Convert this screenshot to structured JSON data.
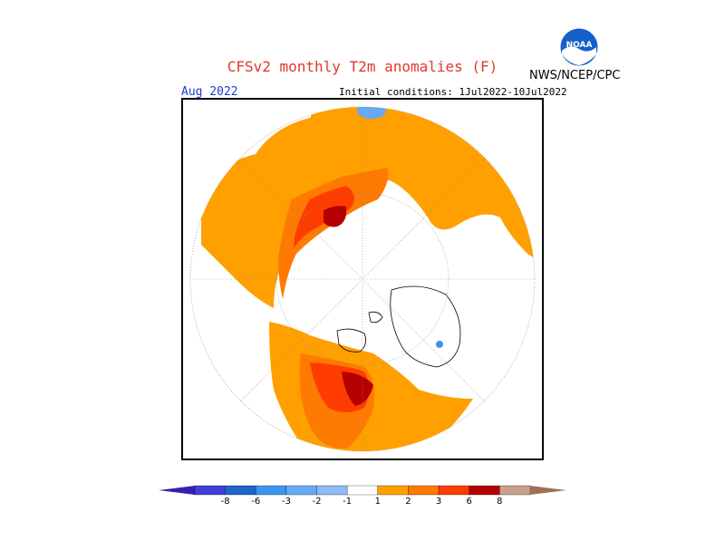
{
  "header": {
    "title": "CFSv2 monthly T2m anomalies (F)",
    "agency": "NWS/NCEP/CPC",
    "month": "Aug 2022",
    "initial_conditions": "Initial conditions: 1Jul2022-10Jul2022",
    "logo_text": "NOAA"
  },
  "legend": {
    "labels": [
      "-8",
      "-6",
      "-3",
      "-2",
      "-1",
      "1",
      "2",
      "3",
      "6",
      "8"
    ],
    "colors": [
      "#3a1fae",
      "#4040d8",
      "#1e64d0",
      "#3c96ef",
      "#64aaf5",
      "#8bbcf5",
      "#ffffff",
      "#ffa000",
      "#ff7a00",
      "#ff3c00",
      "#b40000",
      "#c8a08c",
      "#a0705a"
    ]
  },
  "map": {
    "projection": "north-polar-stereographic",
    "anomaly_colors": {
      "plus1": "#ffa000",
      "plus2": "#ff7a00",
      "plus3": "#ff3c00",
      "plus6": "#b40000",
      "minus1": "#64aaf5",
      "minus2": "#3c96ef"
    }
  }
}
